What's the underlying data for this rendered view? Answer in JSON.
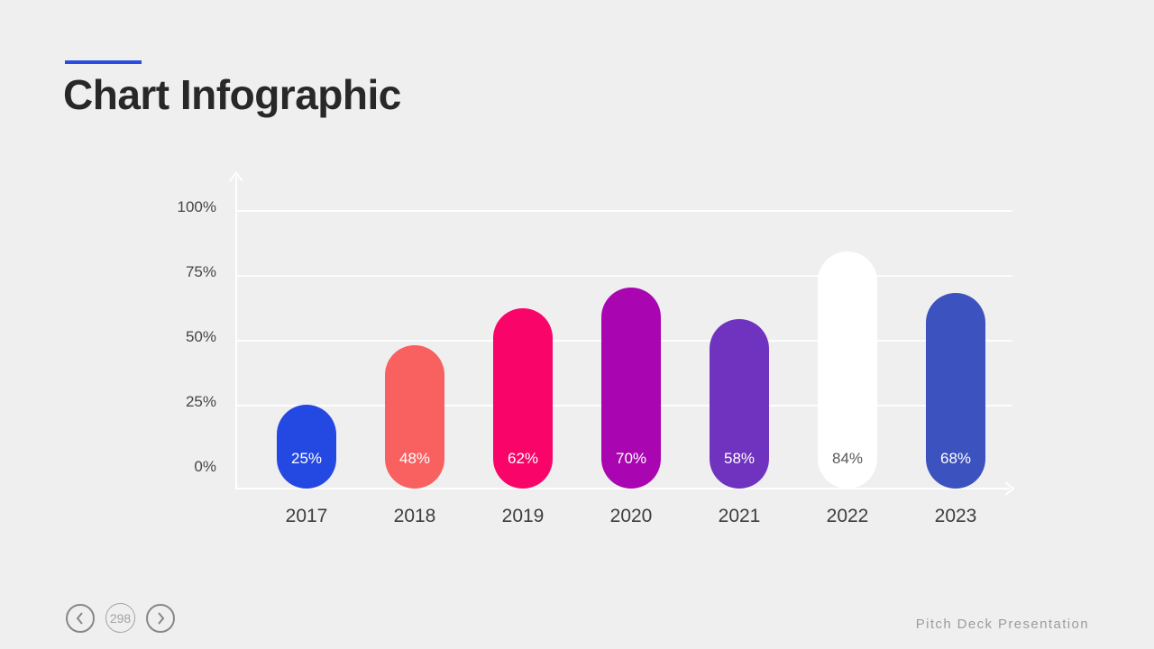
{
  "slide": {
    "title": "Chart Infographic",
    "footer": "Pitch Deck Presentation",
    "background_color": "#efefef",
    "accent_color": "#2b4be2",
    "title_color": "#282828"
  },
  "nav": {
    "page": "298",
    "prev_icon": "chevron-left-icon",
    "next_icon": "chevron-right-icon"
  },
  "chart_data": {
    "type": "bar",
    "title": "Chart Infographic",
    "categories": [
      "2017",
      "2018",
      "2019",
      "2020",
      "2021",
      "2022",
      "2023"
    ],
    "values": [
      25,
      48,
      62,
      70,
      58,
      84,
      68
    ],
    "value_labels": [
      "25%",
      "48%",
      "62%",
      "70%",
      "58%",
      "84%",
      "68%"
    ],
    "bar_colors": [
      "#2448e2",
      "#f96060",
      "#f90468",
      "#a906b2",
      "#7033c0",
      "#ffffff",
      "#3c52be"
    ],
    "value_label_colors": [
      "#ffffff",
      "#ffffff",
      "#ffffff",
      "#ffffff",
      "#ffffff",
      "#58585a",
      "#ffffff"
    ],
    "xlabel": "",
    "ylabel": "",
    "y_ticks": [
      "100%",
      "75%",
      "50%",
      "25%",
      "0%"
    ],
    "y_tick_values": [
      100,
      75,
      50,
      25,
      0
    ],
    "ylim": [
      0,
      100
    ],
    "grid": "horizontal white lines at 25% steps",
    "axis_color": "#ffffff",
    "legend": "none",
    "bar_shape": "rounded pill"
  }
}
